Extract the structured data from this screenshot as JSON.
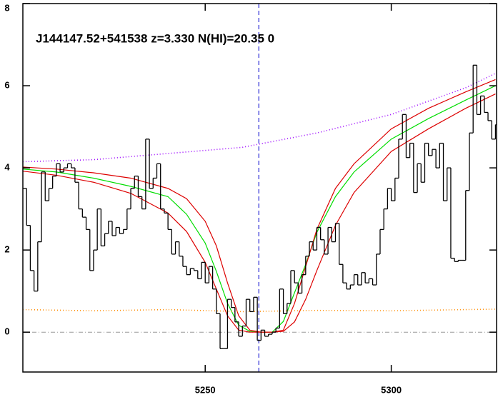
{
  "chart_data": {
    "type": "line",
    "annotation": "J144147.52+541538 z=3.330 N(HI)=20.35 0",
    "xlim": [
      5201,
      5328.3
    ],
    "ylim": [
      -0.97,
      8
    ],
    "xticks": [
      5250,
      5300
    ],
    "yticks": [
      0,
      2,
      4,
      6,
      8
    ],
    "zero_line": {
      "value": 0,
      "color": "#999999"
    },
    "vline": {
      "value": 5264.4,
      "color": "#0000cc"
    },
    "flux": {
      "color": "#000000",
      "step": true,
      "x": [
        5201,
        5202,
        5203,
        5204,
        5205,
        5206,
        5207,
        5208,
        5209,
        5210,
        5211,
        5212,
        5213,
        5214,
        5215,
        5216,
        5217,
        5218,
        5219,
        5220,
        5221,
        5222,
        5223,
        5224,
        5225,
        5226,
        5227,
        5228,
        5229,
        5230,
        5231,
        5232,
        5233,
        5234,
        5235,
        5236,
        5237,
        5238,
        5239,
        5240,
        5241,
        5242,
        5243,
        5244,
        5245,
        5246,
        5247,
        5248,
        5249,
        5250,
        5251,
        5252,
        5253,
        5254,
        5255,
        5256,
        5257,
        5258,
        5259,
        5260,
        5261,
        5262,
        5263,
        5264,
        5265,
        5266,
        5267,
        5268,
        5269,
        5270,
        5271,
        5272,
        5273,
        5274,
        5275,
        5276,
        5277,
        5278,
        5279,
        5280,
        5281,
        5282,
        5283,
        5284,
        5285,
        5286,
        5287,
        5288,
        5289,
        5290,
        5291,
        5292,
        5293,
        5294,
        5295,
        5296,
        5297,
        5298,
        5299,
        5300,
        5301,
        5302,
        5303,
        5304,
        5305,
        5306,
        5307,
        5308,
        5309,
        5310,
        5311,
        5312,
        5313,
        5314,
        5315,
        5316,
        5317,
        5318,
        5319,
        5320,
        5321,
        5322,
        5323,
        5324,
        5325,
        5326,
        5327,
        5328
      ],
      "values": [
        3.5,
        2.6,
        1.5,
        1.0,
        2.2,
        3.9,
        3.2,
        3.5,
        3.8,
        4.1,
        3.9,
        4.0,
        4.1,
        4.0,
        3.65,
        3.0,
        2.8,
        2.5,
        1.5,
        2.0,
        3.0,
        2.1,
        2.4,
        2.7,
        2.35,
        2.55,
        2.4,
        2.5,
        3.0,
        3.5,
        3.8,
        3.3,
        3.0,
        4.7,
        3.5,
        3.75,
        4.1,
        3.0,
        2.9,
        2.5,
        1.9,
        2.2,
        1.85,
        1.6,
        1.4,
        1.55,
        1.5,
        1.3,
        1.7,
        1.2,
        1.6,
        1.05,
        0.45,
        -0.4,
        -0.4,
        0.8,
        0.6,
        0.25,
        -0.1,
        0.15,
        0.8,
        0.5,
        0.85,
        -0.2,
        0.05,
        -0.1,
        -0.05,
        0,
        0.1,
        1.05,
        0.45,
        0.7,
        1.5,
        1.2,
        0.95,
        1.4,
        1.85,
        2.2,
        2.0,
        2.55,
        2.25,
        1.9,
        2.55,
        2.2,
        2.65,
        1.65,
        1.2,
        1.05,
        1.15,
        1.4,
        1.15,
        1.45,
        1.2,
        1.3,
        1.15,
        1.9,
        2.5,
        3.0,
        3.5,
        3.2,
        3.75,
        4.7,
        5.3,
        4.25,
        4.6,
        3.4,
        4.1,
        3.65,
        4.6,
        4.3,
        4.45,
        4.0,
        4.6,
        3.2,
        4.0,
        1.8,
        1.72,
        1.75,
        1.75,
        3.45,
        4.85,
        6.5,
        5.3,
        5.75,
        5.35,
        5.15,
        4.7,
        5.05
      ]
    },
    "series": [
      {
        "color": "#00dd00",
        "dash": "none",
        "x": [
          5201,
          5210,
          5220,
          5230,
          5240,
          5245,
          5250,
          5253,
          5256,
          5259,
          5262,
          5265,
          5268,
          5271,
          5274,
          5277,
          5280,
          5285,
          5290,
          5300,
          5310,
          5320,
          5328
        ],
        "values": [
          3.97,
          3.9,
          3.75,
          3.55,
          3.3,
          2.87,
          2.17,
          1.48,
          0.7,
          0.17,
          0.02,
          0,
          0,
          0.26,
          0.96,
          1.65,
          2.43,
          3.3,
          3.9,
          4.7,
          5.2,
          5.65,
          6.0
        ]
      },
      {
        "color": "#dd0000",
        "dash": "none",
        "x": [
          5201,
          5210,
          5220,
          5230,
          5240,
          5245,
          5250,
          5253,
          5256,
          5259,
          5262,
          5265,
          5268,
          5271,
          5274,
          5277,
          5280,
          5285,
          5290,
          5300,
          5310,
          5320,
          5328
        ],
        "values": [
          4.02,
          3.97,
          3.88,
          3.75,
          3.5,
          3.25,
          2.7,
          2.1,
          1.2,
          0.4,
          0.05,
          0,
          0,
          0.05,
          0.7,
          1.6,
          2.5,
          3.5,
          4.1,
          4.95,
          5.45,
          5.85,
          6.15
        ]
      },
      {
        "color": "#dd0000",
        "dash": "none",
        "x": [
          5201,
          5210,
          5220,
          5230,
          5240,
          5245,
          5250,
          5253,
          5256,
          5259,
          5262,
          5265,
          5268,
          5271,
          5274,
          5277,
          5280,
          5285,
          5290,
          5300,
          5310,
          5320,
          5328
        ],
        "values": [
          3.92,
          3.82,
          3.65,
          3.38,
          2.9,
          2.45,
          1.7,
          1.05,
          0.4,
          0.05,
          0,
          0,
          0,
          0.02,
          0.25,
          0.8,
          1.5,
          2.6,
          3.4,
          4.4,
          4.95,
          5.45,
          5.8
        ]
      },
      {
        "color": "#9b00ff",
        "dash": "1 3",
        "x": [
          5201,
          5220,
          5240,
          5260,
          5280,
          5300,
          5320,
          5328
        ],
        "values": [
          4.15,
          4.2,
          4.35,
          4.5,
          4.85,
          5.3,
          5.95,
          6.3
        ]
      },
      {
        "color": "#ff8c00",
        "dash": "1 3",
        "x": [
          5201,
          5220,
          5240,
          5260,
          5280,
          5300,
          5320,
          5328
        ],
        "values": [
          0.55,
          0.52,
          0.55,
          0.5,
          0.53,
          0.52,
          0.55,
          0.56
        ]
      }
    ]
  }
}
